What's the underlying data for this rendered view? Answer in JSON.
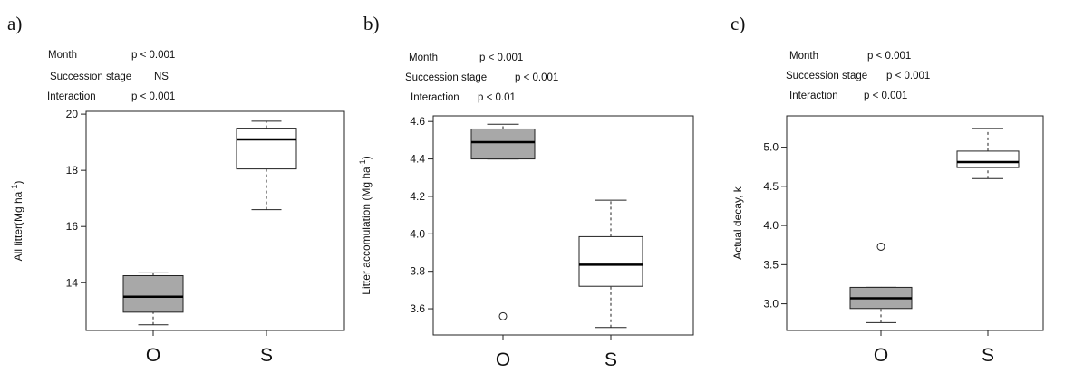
{
  "panels": [
    {
      "letter": "a)",
      "stats": [
        {
          "label": "Month",
          "value": "p < 0.001"
        },
        {
          "label": "Succession stage",
          "value": "NS"
        },
        {
          "label": "Interaction",
          "value": "p < 0.001"
        }
      ]
    },
    {
      "letter": "b)",
      "stats": [
        {
          "label": "Month",
          "value": "p < 0.001"
        },
        {
          "label": "Succession stage",
          "value": "p < 0.001"
        },
        {
          "label": "Interaction",
          "value": "p < 0.01"
        }
      ]
    },
    {
      "letter": "c)",
      "stats": [
        {
          "label": "Month",
          "value": "p < 0.001"
        },
        {
          "label": "Succession stage",
          "value": "p < 0.001"
        },
        {
          "label": "Interaction",
          "value": "p < 0.001"
        }
      ]
    }
  ],
  "chart_data": [
    {
      "type": "box",
      "ylabel": "All litter(Mg ha",
      "ylabel_sup": "-1",
      "ylabel_close": ")",
      "categories": [
        "O",
        "S"
      ],
      "yticks": [
        "14",
        "16",
        "18",
        "20"
      ],
      "ylim": [
        12.3,
        20.1
      ],
      "boxes": [
        {
          "category": "O",
          "whisker_low": 12.5,
          "q1": 12.95,
          "median": 13.5,
          "q3": 14.25,
          "whisker_high": 14.35,
          "outliers": [],
          "fill": "#a8a8a8"
        },
        {
          "category": "S",
          "whisker_low": 16.6,
          "q1": 18.05,
          "median": 19.1,
          "q3": 19.5,
          "whisker_high": 19.75,
          "outliers": [],
          "fill": "#ffffff"
        }
      ]
    },
    {
      "type": "box",
      "ylabel": "Litter accomulation (Mg ha",
      "ylabel_sup": "-1",
      "ylabel_close": ")",
      "categories": [
        "O",
        "S"
      ],
      "yticks": [
        "3.6",
        "3.8",
        "4.0",
        "4.2",
        "4.4",
        "4.6"
      ],
      "ylim": [
        3.46,
        4.63
      ],
      "boxes": [
        {
          "category": "O",
          "whisker_low": 4.4,
          "q1": 4.4,
          "median": 4.49,
          "q3": 4.56,
          "whisker_high": 4.585,
          "outliers": [
            3.56
          ],
          "fill": "#a8a8a8"
        },
        {
          "category": "S",
          "whisker_low": 3.5,
          "q1": 3.72,
          "median": 3.835,
          "q3": 3.985,
          "whisker_high": 4.18,
          "outliers": [],
          "fill": "#ffffff"
        }
      ]
    },
    {
      "type": "box",
      "ylabel": "Actual decay, k",
      "ylabel_sup": "",
      "ylabel_close": "",
      "categories": [
        "O",
        "S"
      ],
      "yticks": [
        "3.0",
        "3.5",
        "4.0",
        "4.5",
        "5.0"
      ],
      "ylim": [
        2.66,
        5.4
      ],
      "boxes": [
        {
          "category": "O",
          "whisker_low": 2.76,
          "q1": 2.94,
          "median": 3.07,
          "q3": 3.21,
          "whisker_high": 3.21,
          "outliers": [
            3.73
          ],
          "fill": "#a8a8a8"
        },
        {
          "category": "S",
          "whisker_low": 4.6,
          "q1": 4.74,
          "median": 4.81,
          "q3": 4.95,
          "whisker_high": 5.24,
          "outliers": [],
          "fill": "#ffffff"
        }
      ]
    }
  ]
}
